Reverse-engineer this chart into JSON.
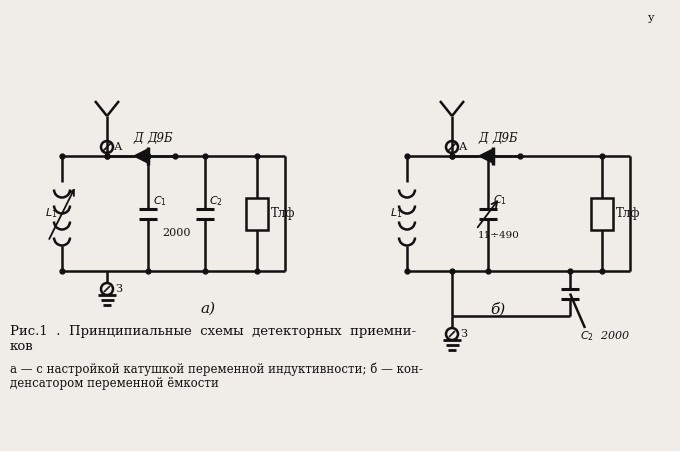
{
  "background_color": "#f0ede8",
  "title_line1": "Рис.1  .  Принципиальные  схемы  детекторных  приемни-",
  "title_line2": "ков",
  "caption_line1": "а — с настройкой катушкой переменной индуктивности; б — кон-",
  "caption_line2": "денсатором переменной ёмкости",
  "line_color": "#111111",
  "text_color": "#111111",
  "fig_width": 6.8,
  "fig_height": 4.51,
  "dpi": 100
}
